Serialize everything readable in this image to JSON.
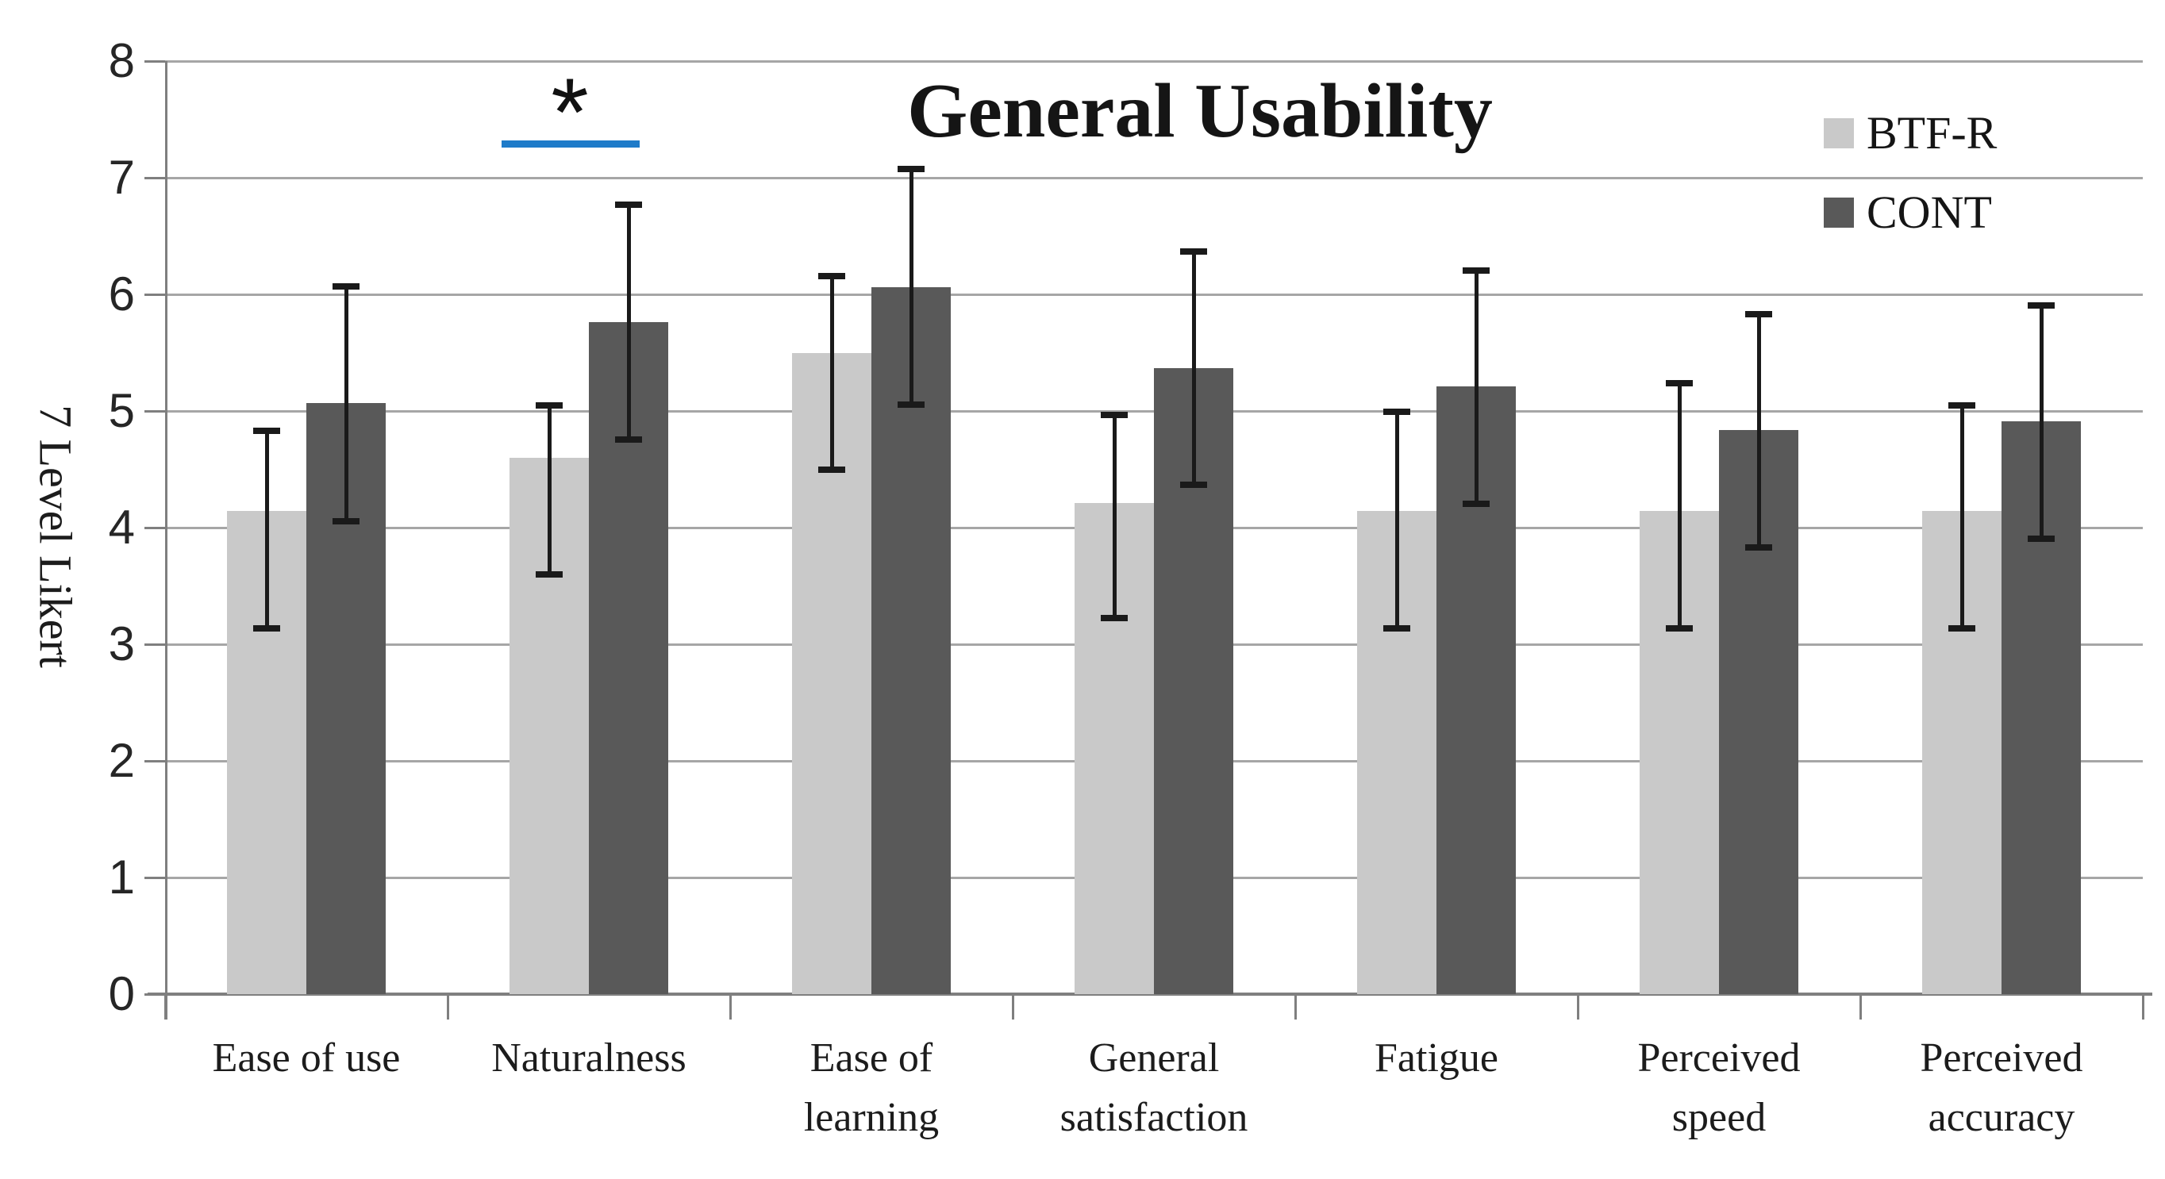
{
  "figure": {
    "title": "General Usability",
    "y_axis_title": "7 Level Likert"
  },
  "legend": {
    "position": "top-right",
    "items": [
      {
        "label": "BTF-R",
        "color": "#c9c9c9"
      },
      {
        "label": "CONT",
        "color": "#595959"
      }
    ]
  },
  "colors": {
    "btfr_bar": "#c9c9c9",
    "cont_bar": "#595959",
    "gridline": "#a6a6a6",
    "axis": "#7f7f7f",
    "error_bar": "#1a1a1a",
    "significance_underline": "#1e7bc9",
    "text": "#1c1c1c"
  },
  "chart_data": {
    "type": "bar",
    "title": "General Usability",
    "xlabel": "",
    "ylabel": "7 Level Likert",
    "ylim": [
      0,
      8
    ],
    "yticks": [
      0,
      1,
      2,
      3,
      4,
      5,
      6,
      7,
      8
    ],
    "grid": "horizontal",
    "legend_position": "top-right",
    "categories": [
      "Ease of use",
      "Naturalness",
      "Ease of\nlearning",
      "General\nsatisfaction",
      "Fatigue",
      "Perceived\nspeed",
      "Perceived\naccuracy"
    ],
    "series": [
      {
        "name": "BTF-R",
        "color": "#c9c9c9",
        "values": [
          4.14,
          4.6,
          5.5,
          4.21,
          4.14,
          4.14,
          4.14
        ],
        "error_top": [
          4.83,
          5.05,
          6.16,
          4.97,
          5.0,
          5.24,
          5.05
        ],
        "error_bottom": [
          3.14,
          3.6,
          4.5,
          3.23,
          3.14,
          3.14,
          3.14
        ]
      },
      {
        "name": "CONT",
        "color": "#595959",
        "values": [
          5.07,
          5.76,
          6.06,
          5.37,
          5.21,
          4.84,
          4.91
        ],
        "error_top": [
          6.07,
          6.77,
          7.08,
          6.37,
          6.21,
          5.83,
          5.91
        ],
        "error_bottom": [
          4.06,
          4.76,
          5.06,
          4.37,
          4.21,
          3.83,
          3.91
        ]
      }
    ],
    "annotation": {
      "symbol": "*",
      "category": "Naturalness",
      "meaning": "significant difference",
      "underline_color": "#1e7bc9"
    }
  }
}
